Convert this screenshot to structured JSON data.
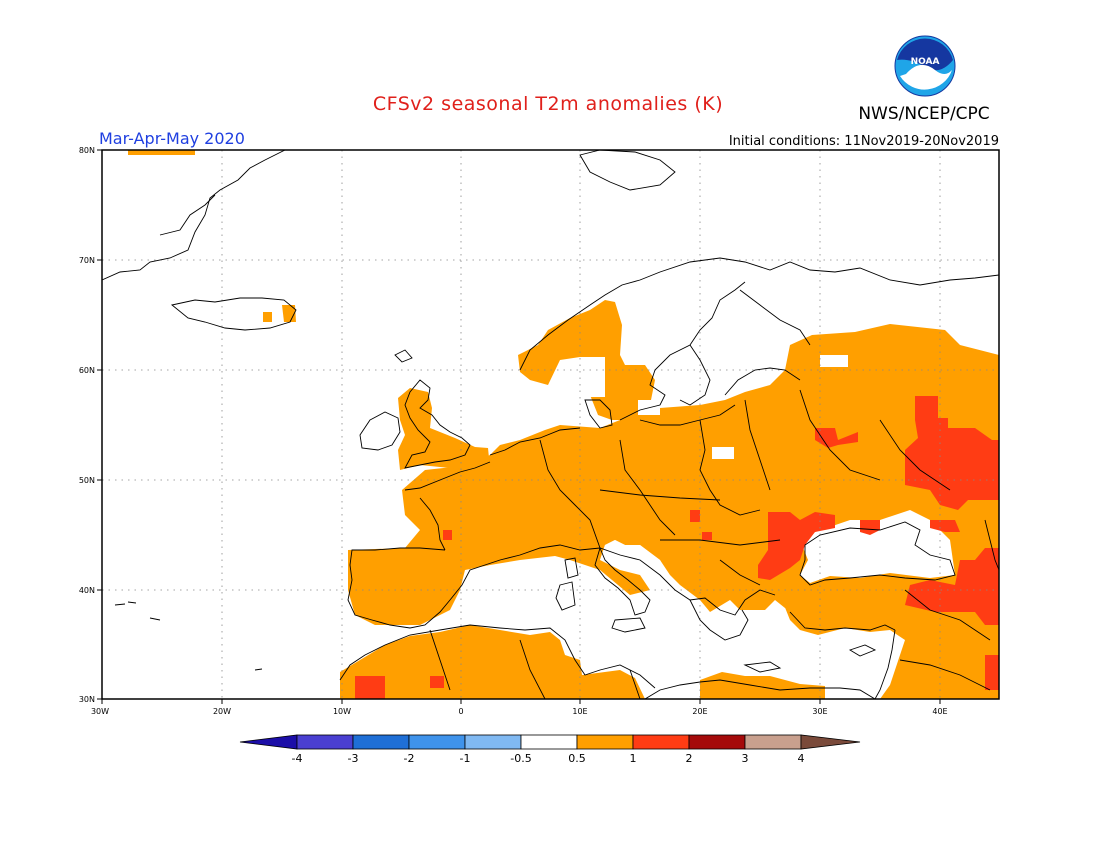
{
  "title": "CFSv2 seasonal T2m anomalies (K)",
  "season": "Mar-Apr-May 2020",
  "initial_conditions": "Initial conditions: 11Nov2019-20Nov2019",
  "agency": "NWS/NCEP/CPC",
  "logo_text": "NOAA",
  "map": {
    "lon_range": [
      -30,
      45
    ],
    "lat_range": [
      30,
      80
    ],
    "lon_ticks": [
      "30W",
      "20W",
      "10W",
      "0",
      "10E",
      "20E",
      "30E",
      "40E"
    ],
    "lat_ticks": [
      "80N",
      "70N",
      "60N",
      "50N",
      "40N",
      "30N"
    ]
  },
  "colorbar": {
    "labels": [
      "-4",
      "-3",
      "-2",
      "-1",
      "-0.5",
      "0.5",
      "1",
      "2",
      "3",
      "4"
    ],
    "colors": [
      "#1c0ea8",
      "#4a3fd1",
      "#1f6fd6",
      "#3f93eb",
      "#80b9f2",
      "#ffffff",
      "#ff9f00",
      "#ff3c14",
      "#a50a0a",
      "#c9a08e",
      "#7a4a3a"
    ]
  },
  "anomaly_colors": {
    "warm_0_5_to_1": "#ff9f00",
    "warm_1_to_2": "#ff3c14"
  }
}
